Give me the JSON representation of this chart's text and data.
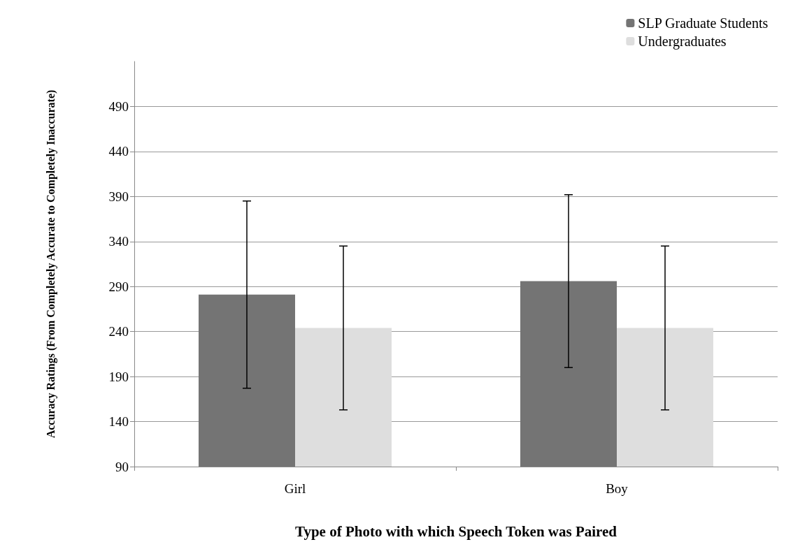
{
  "chart_data": {
    "type": "bar",
    "xlabel": "Type of Photo with which Speech Token was Paired",
    "ylabel": "Accuracy Ratings (From Completely Accurate to Completely Inaccurate)",
    "categories": [
      "Girl",
      "Boy"
    ],
    "series": [
      {
        "name": "SLP Graduate Students",
        "color": "#747474",
        "values": [
          281,
          296
        ],
        "errors": [
          104,
          96
        ]
      },
      {
        "name": "Undergraduates",
        "color": "#dedede",
        "values": [
          244,
          244
        ],
        "errors": [
          91,
          91
        ]
      }
    ],
    "ylim": [
      90,
      540
    ],
    "yticks": [
      90,
      140,
      190,
      240,
      290,
      340,
      390,
      440,
      490
    ],
    "grid": "y",
    "legend": "top right"
  }
}
